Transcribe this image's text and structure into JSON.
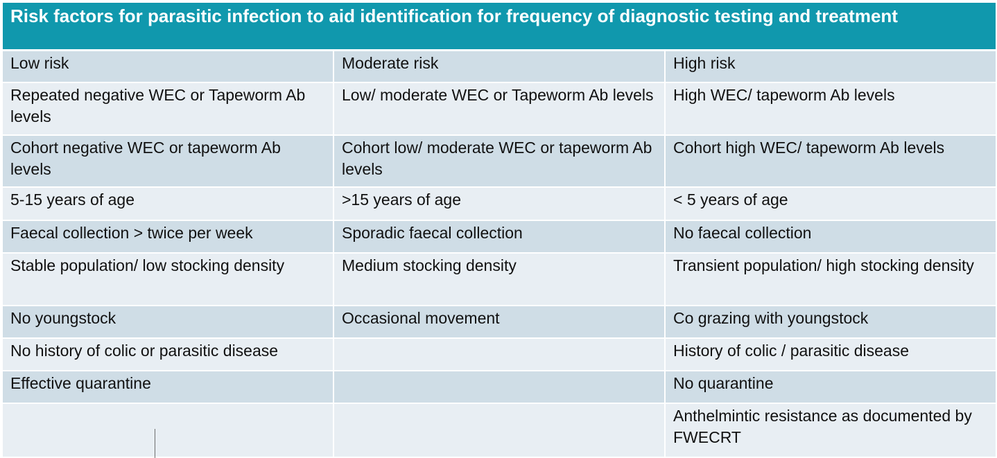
{
  "title": "Risk factors for parasitic infection to aid identification for frequency of diagnostic testing and treatment",
  "colors": {
    "title_bg": "#1098ad",
    "band_dark": "#cfdde6",
    "band_light": "#e8eef3"
  },
  "columns": [
    "Low risk",
    "Moderate risk",
    "High risk"
  ],
  "rows": [
    [
      "Repeated negative WEC or Tapeworm Ab levels",
      "Low/ moderate WEC or Tapeworm Ab levels",
      "High WEC/ tapeworm Ab levels"
    ],
    [
      "Cohort negative WEC or tapeworm Ab levels",
      "Cohort low/ moderate WEC or tapeworm Ab levels",
      "Cohort high WEC/ tapeworm Ab levels"
    ],
    [
      "5-15 years of age",
      ">15 years of age",
      "< 5 years of age"
    ],
    [
      "Faecal collection > twice per week",
      "Sporadic faecal collection",
      "No faecal collection"
    ],
    [
      "Stable population/ low stocking density",
      "Medium stocking density",
      "Transient population/ high stocking density"
    ],
    [
      "No youngstock",
      "Occasional movement",
      "Co grazing with youngstock"
    ],
    [
      "No history of colic or parasitic disease",
      "",
      "History of colic / parasitic disease"
    ],
    [
      "Effective quarantine",
      "",
      "No quarantine"
    ],
    [
      "",
      "",
      "Anthelmintic resistance as documented by FWECRT"
    ]
  ]
}
